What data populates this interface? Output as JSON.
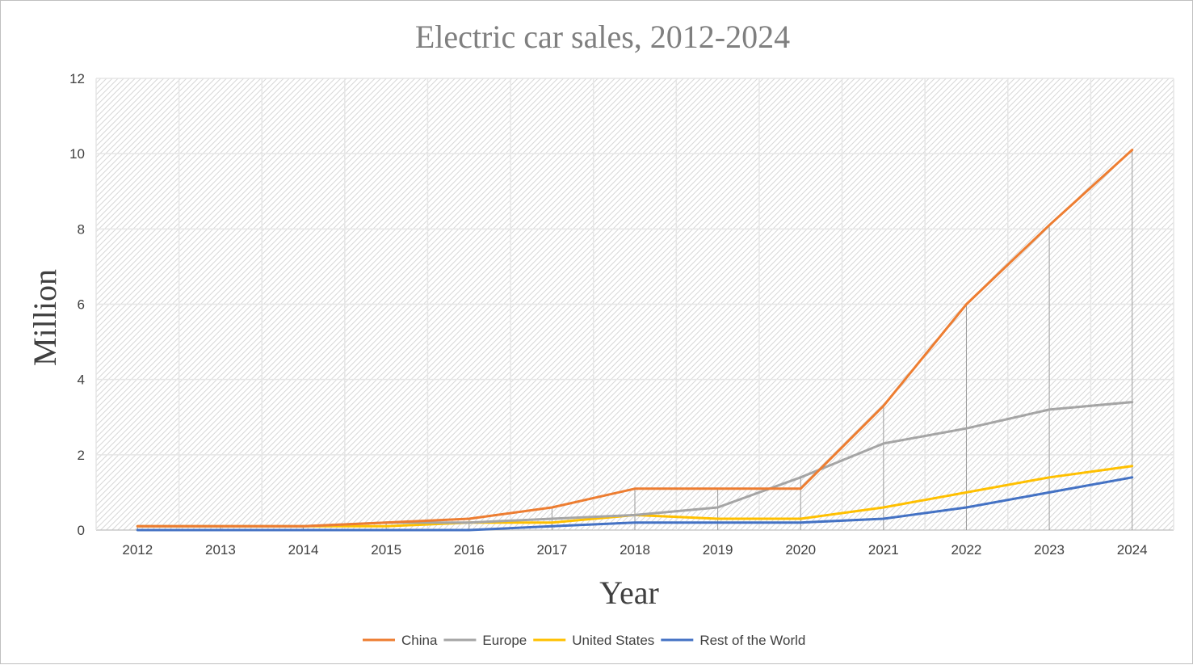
{
  "chart_data": {
    "type": "line",
    "title": "Electric car sales, 2012-2024",
    "xlabel": "Year",
    "ylabel": "Million",
    "categories": [
      "2012",
      "2013",
      "2014",
      "2015",
      "2016",
      "2017",
      "2018",
      "2019",
      "2020",
      "2021",
      "2022",
      "2023",
      "2024"
    ],
    "ylim": [
      0,
      12
    ],
    "yticks": [
      0,
      2,
      4,
      6,
      8,
      10,
      12
    ],
    "grid": true,
    "drop_lines": true,
    "legend_position": "bottom",
    "series": [
      {
        "name": "China",
        "color": "#ed7d31",
        "values": [
          0.1,
          0.1,
          0.1,
          0.2,
          0.3,
          0.6,
          1.1,
          1.1,
          1.1,
          3.3,
          6.0,
          8.1,
          10.1
        ]
      },
      {
        "name": "Europe",
        "color": "#a5a5a5",
        "values": [
          0.1,
          0.1,
          0.1,
          0.2,
          0.2,
          0.3,
          0.4,
          0.6,
          1.4,
          2.3,
          2.7,
          3.2,
          3.4
        ]
      },
      {
        "name": "United States",
        "color": "#ffc000",
        "values": [
          0.1,
          0.1,
          0.1,
          0.1,
          0.2,
          0.2,
          0.4,
          0.3,
          0.3,
          0.6,
          1.0,
          1.4,
          1.7
        ]
      },
      {
        "name": "Rest of the World",
        "color": "#4472c4",
        "values": [
          0.0,
          0.0,
          0.0,
          0.0,
          0.0,
          0.1,
          0.2,
          0.2,
          0.2,
          0.3,
          0.6,
          1.0,
          1.4
        ]
      }
    ]
  }
}
